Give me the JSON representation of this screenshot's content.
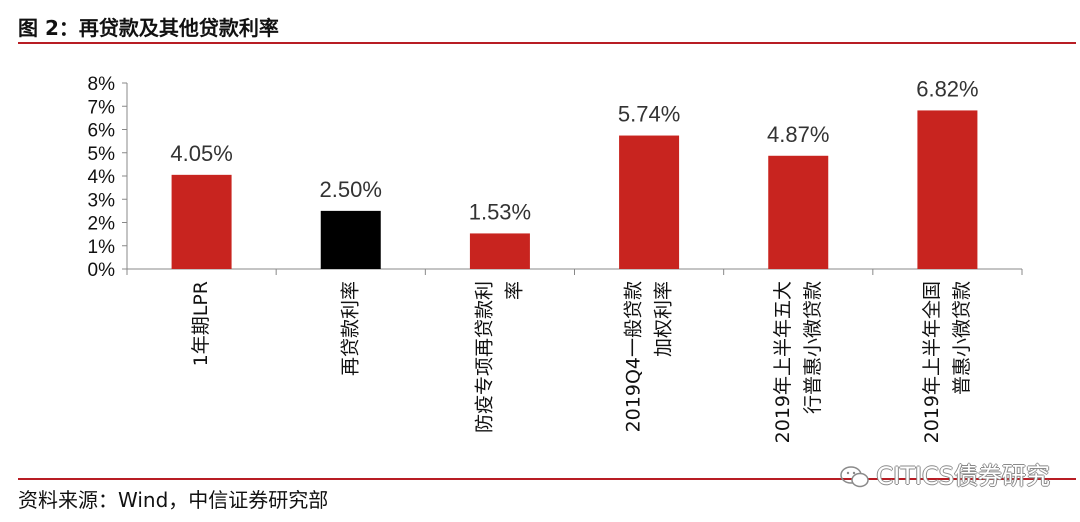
{
  "figure": {
    "title": "图 2：再贷款及其他贷款利率",
    "source": "资料来源：Wind，中信证券研究部",
    "watermark": "CITICS债券研究"
  },
  "chart_data": {
    "type": "bar",
    "title": "",
    "xlabel": "",
    "ylabel": "",
    "ylim": [
      0,
      8
    ],
    "yticks": [
      "0%",
      "1%",
      "2%",
      "3%",
      "4%",
      "5%",
      "6%",
      "7%",
      "8%"
    ],
    "grid": false,
    "categories": [
      [
        "1年期LPR"
      ],
      [
        "再贷款利率"
      ],
      [
        "防疫专项再贷款利",
        "率"
      ],
      [
        "2019Q4一般贷款",
        "加权利率"
      ],
      [
        "2019年上半年五大",
        "行普惠小微贷款"
      ],
      [
        "2019年上半年全国",
        "普惠小微贷款"
      ]
    ],
    "values": [
      4.05,
      2.5,
      1.53,
      5.74,
      4.87,
      6.82
    ],
    "data_labels": [
      "4.05%",
      "2.50%",
      "1.53%",
      "5.74%",
      "4.87%",
      "6.82%"
    ],
    "colors": [
      "#c8241f",
      "#000000",
      "#c8241f",
      "#c8241f",
      "#c8241f",
      "#c8241f"
    ]
  }
}
